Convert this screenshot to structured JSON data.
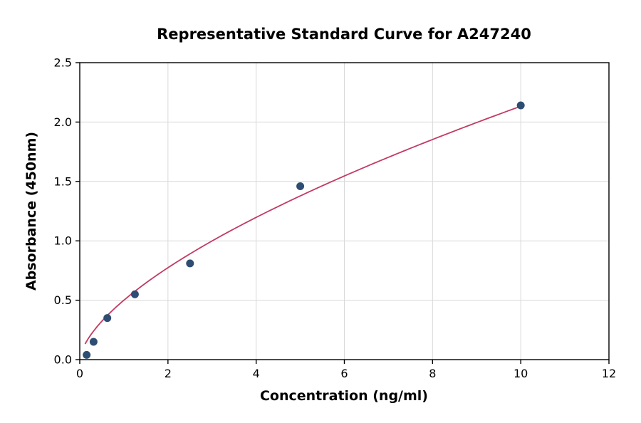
{
  "chart_data": {
    "type": "scatter",
    "title": "Representative Standard Curve for A247240",
    "xlabel": "Concentration (ng/ml)",
    "ylabel": "Absorbance (450nm)",
    "xlim": [
      0,
      12
    ],
    "ylim": [
      0,
      2.5
    ],
    "xticks": [
      0,
      2,
      4,
      6,
      8,
      10,
      12
    ],
    "xtick_labels": [
      "0",
      "2",
      "4",
      "6",
      "8",
      "10",
      "12"
    ],
    "yticks": [
      0,
      0.5,
      1.0,
      1.5,
      2.0,
      2.5
    ],
    "ytick_labels": [
      "0.0",
      "0.5",
      "1.0",
      "1.5",
      "2.0",
      "2.5"
    ],
    "grid": true,
    "legend": "none",
    "points": [
      {
        "x": 0.156,
        "y": 0.04
      },
      {
        "x": 0.313,
        "y": 0.15
      },
      {
        "x": 0.625,
        "y": 0.35
      },
      {
        "x": 1.25,
        "y": 0.55
      },
      {
        "x": 2.5,
        "y": 0.81
      },
      {
        "x": 5.0,
        "y": 1.46
      },
      {
        "x": 10.0,
        "y": 2.14
      }
    ],
    "fit": {
      "model": "power",
      "a": 0.5,
      "b": 0.63,
      "x_range": [
        0.12,
        10.0
      ]
    },
    "colors": {
      "curve": "#c13b63",
      "points": "#2e4d73",
      "grid": "#d9d9d9",
      "axis": "#000000",
      "background": "#ffffff"
    }
  }
}
